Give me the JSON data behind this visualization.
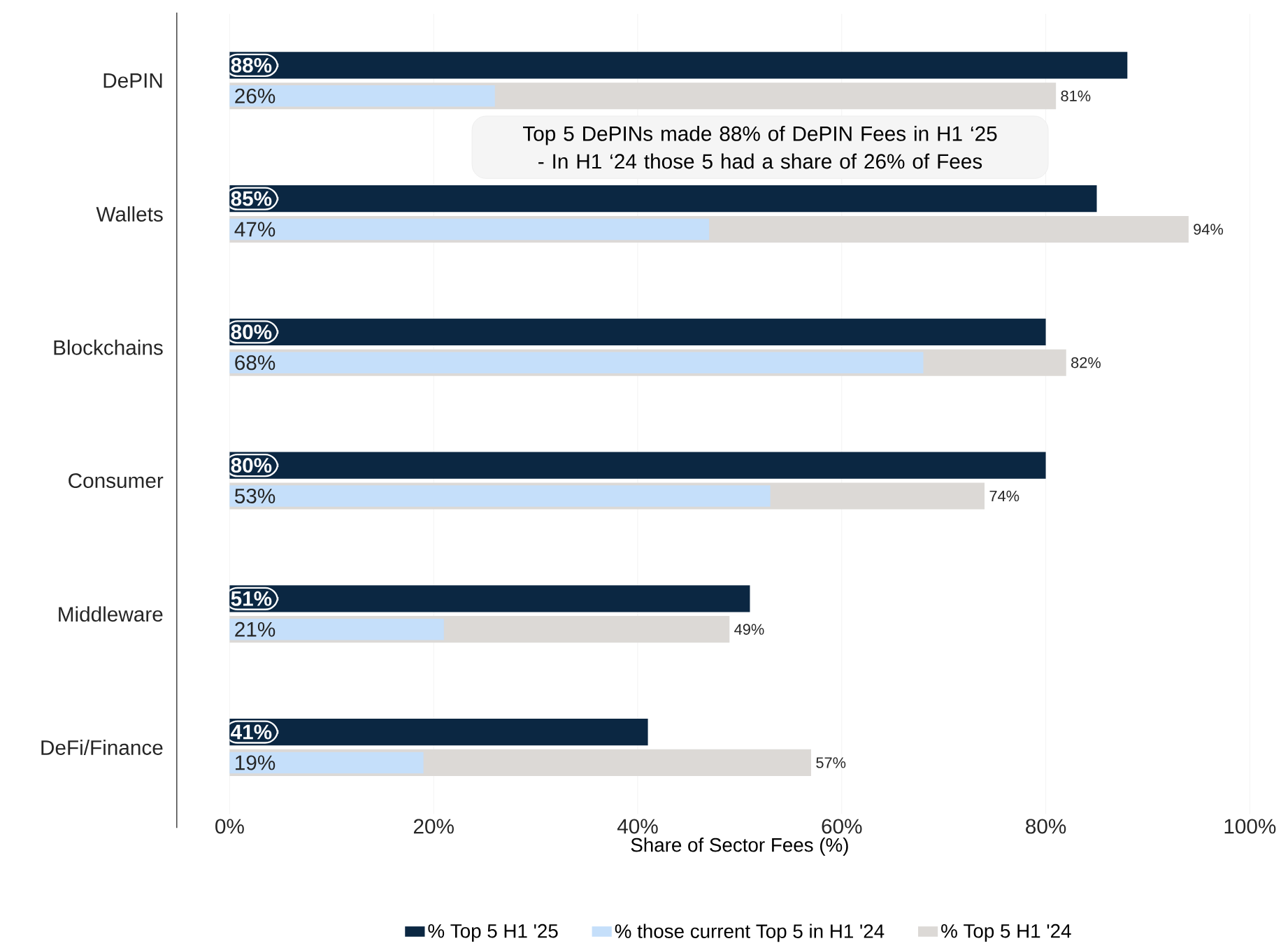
{
  "chart_data": {
    "type": "bar",
    "orientation": "horizontal",
    "categories": [
      "DePIN",
      "Wallets",
      "Blockchains",
      "Consumer",
      "Middleware",
      "DeFi/Finance"
    ],
    "series": [
      {
        "name": "% Top 5 H1 '25",
        "color": "#0b2742",
        "values": [
          88,
          85,
          80,
          80,
          51,
          41
        ],
        "value_labels": [
          "88%",
          "85%",
          "80%",
          "80%",
          "51%",
          "41%"
        ]
      },
      {
        "name": "% those current Top 5 in H1 '24",
        "color": "#c5dffa",
        "values": [
          26,
          47,
          68,
          53,
          21,
          19
        ],
        "value_labels": [
          "26%",
          "47%",
          "68%",
          "53%",
          "21%",
          "19%"
        ]
      },
      {
        "name": "% Top 5 H1 '24",
        "color": "#dcd9d6",
        "values": [
          81,
          94,
          82,
          74,
          49,
          57
        ],
        "value_labels": [
          "81%",
          "94%",
          "82%",
          "74%",
          "49%",
          "57%"
        ]
      }
    ],
    "xlim": [
      0,
      100
    ],
    "xticks": [
      {
        "value": 0,
        "label": "0%"
      },
      {
        "value": 20,
        "label": "20%"
      },
      {
        "value": 40,
        "label": "40%"
      },
      {
        "value": 60,
        "label": "60%"
      },
      {
        "value": 80,
        "label": "80%"
      },
      {
        "value": 100,
        "label": "100%"
      }
    ],
    "xlabel": "Share of Sector Fees (%)",
    "grid": "x",
    "legend": "bottom",
    "annotations": [
      "Top 5 DePINs made 88% of DePIN Fees in H1 ‘25 - In H1 ‘24 those 5 had a share of 26% of Fees"
    ]
  }
}
